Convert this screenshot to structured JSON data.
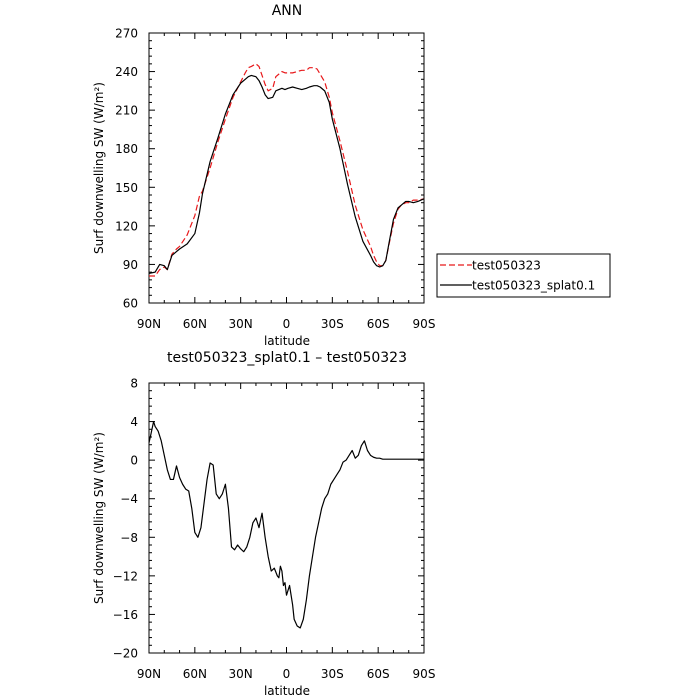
{
  "chart_data": [
    {
      "type": "line",
      "title": "ANN",
      "xlabel": "latitude",
      "ylabel": "Surf downwelling SW (W/m²)",
      "xlim": [
        -90,
        90
      ],
      "ylim": [
        60,
        270
      ],
      "xticks": [
        {
          "value": -90,
          "label": "90N"
        },
        {
          "value": -60,
          "label": "60N"
        },
        {
          "value": -30,
          "label": "30N"
        },
        {
          "value": 0,
          "label": "0"
        },
        {
          "value": 30,
          "label": "30S"
        },
        {
          "value": 60,
          "label": "60S"
        },
        {
          "value": 90,
          "label": "90S"
        }
      ],
      "yticks": [
        60,
        90,
        120,
        150,
        180,
        210,
        240,
        270
      ],
      "legend_position": "right",
      "series": [
        {
          "name": "test050323",
          "color": "#e8191b",
          "dash": "dashed",
          "x": [
            -90,
            -86,
            -83,
            -80,
            -78,
            -75,
            -72,
            -70,
            -65,
            -60,
            -57,
            -55,
            -50,
            -45,
            -40,
            -35,
            -30,
            -27,
            -25,
            -23,
            -20,
            -18,
            -16,
            -14,
            -12,
            -9,
            -7,
            -5,
            -3,
            -1,
            1,
            4,
            7,
            10,
            13,
            15,
            18,
            20,
            22,
            25,
            28,
            30,
            35,
            40,
            45,
            50,
            55,
            57,
            59,
            61,
            63,
            65,
            67,
            70,
            73,
            75,
            78,
            80,
            83,
            86,
            90
          ],
          "y": [
            81,
            81,
            86,
            88,
            86,
            98,
            102,
            104,
            113,
            128,
            143,
            147,
            165,
            185,
            203,
            220,
            232,
            239,
            243,
            244,
            246,
            244,
            237,
            230,
            225,
            227,
            236,
            238,
            240,
            239,
            239,
            239,
            240,
            241,
            241,
            243,
            243,
            242,
            238,
            232,
            220,
            208,
            186,
            162,
            136,
            117,
            104,
            97,
            92,
            89,
            89,
            93,
            105,
            122,
            133,
            136,
            138,
            138,
            140,
            140,
            141
          ]
        },
        {
          "name": "test050323_splat0.1",
          "color": "#000000",
          "dash": "solid",
          "x": [
            -90,
            -86,
            -83,
            -80,
            -78,
            -75,
            -72,
            -70,
            -65,
            -60,
            -57,
            -55,
            -50,
            -45,
            -40,
            -35,
            -30,
            -27,
            -25,
            -23,
            -20,
            -18,
            -16,
            -14,
            -12,
            -9,
            -7,
            -5,
            -3,
            -1,
            1,
            4,
            7,
            10,
            13,
            15,
            18,
            20,
            22,
            25,
            28,
            30,
            35,
            40,
            45,
            50,
            55,
            57,
            59,
            61,
            63,
            65,
            67,
            70,
            73,
            75,
            78,
            80,
            83,
            86,
            90
          ],
          "y": [
            83,
            84,
            90,
            89,
            86,
            97,
            100,
            102,
            106,
            114,
            130,
            145,
            170,
            188,
            207,
            222,
            231,
            234,
            236,
            237,
            236,
            233,
            228,
            222,
            219,
            220,
            225,
            226,
            227,
            226,
            227,
            228,
            227,
            226,
            227,
            228,
            229,
            229,
            228,
            225,
            216,
            203,
            180,
            152,
            127,
            108,
            97,
            92,
            89,
            88,
            89,
            93,
            106,
            125,
            134,
            136,
            139,
            139,
            138,
            139,
            141
          ]
        }
      ]
    },
    {
      "type": "line",
      "title": "test050323_splat0.1 – test050323",
      "xlabel": "latitude",
      "ylabel": "Surf downwelling SW (W/m²)",
      "xlim": [
        -90,
        90
      ],
      "ylim": [
        -20,
        8
      ],
      "xticks": [
        {
          "value": -90,
          "label": "90N"
        },
        {
          "value": -60,
          "label": "60N"
        },
        {
          "value": -30,
          "label": "30N"
        },
        {
          "value": 0,
          "label": "0"
        },
        {
          "value": 30,
          "label": "30S"
        },
        {
          "value": 60,
          "label": "60S"
        },
        {
          "value": 90,
          "label": "90S"
        }
      ],
      "yticks": [
        -20,
        -16,
        -12,
        -8,
        -4,
        0,
        4,
        8
      ],
      "series": [
        {
          "color": "#000000",
          "dash": "solid",
          "x": [
            -90,
            -89,
            -87,
            -86,
            -84,
            -82,
            -80,
            -78,
            -76,
            -74,
            -72,
            -70,
            -68,
            -66,
            -64,
            -62,
            -60,
            -58,
            -56,
            -54,
            -52,
            -50,
            -48,
            -46,
            -44,
            -42,
            -40,
            -38,
            -36,
            -34,
            -32,
            -30,
            -28,
            -26,
            -24,
            -22,
            -20,
            -18,
            -16,
            -14,
            -12,
            -10,
            -8,
            -6,
            -5,
            -4,
            -3,
            -2,
            -1,
            0,
            1,
            2,
            3,
            4,
            5,
            7,
            9,
            11,
            13,
            15,
            17,
            19,
            21,
            23,
            25,
            27,
            29,
            31,
            33,
            35,
            37,
            39,
            41,
            43,
            45,
            47,
            49,
            51,
            53,
            55,
            57,
            59,
            61,
            63,
            65,
            67,
            69,
            71,
            73,
            75,
            77,
            79,
            81,
            83,
            85,
            87,
            90
          ],
          "y": [
            1.8,
            2.5,
            4.0,
            3.5,
            3.0,
            2.0,
            0.5,
            -1.0,
            -2.0,
            -2.0,
            -0.6,
            -1.8,
            -2.5,
            -3.0,
            -3.2,
            -5.0,
            -7.5,
            -8.0,
            -7.0,
            -4.5,
            -2.0,
            -0.3,
            -0.5,
            -3.5,
            -4.0,
            -3.5,
            -2.5,
            -5.0,
            -9.0,
            -9.3,
            -8.8,
            -9.2,
            -9.5,
            -9.0,
            -8.0,
            -6.5,
            -6.0,
            -7.0,
            -5.5,
            -8.0,
            -10.0,
            -11.5,
            -11.2,
            -12.0,
            -12.2,
            -11.0,
            -11.5,
            -13.0,
            -12.7,
            -14.0,
            -13.5,
            -13.0,
            -14.0,
            -15.0,
            -16.5,
            -17.2,
            -17.4,
            -16.5,
            -14.5,
            -12.0,
            -10.0,
            -8.0,
            -6.5,
            -5.0,
            -4.0,
            -3.5,
            -2.5,
            -2.0,
            -1.5,
            -1.0,
            -0.2,
            0.0,
            0.5,
            1.0,
            0.2,
            0.5,
            1.5,
            2.0,
            1.0,
            0.5,
            0.3,
            0.2,
            0.2,
            0.1,
            0.1,
            0.1,
            0.1,
            0.1,
            0.1,
            0.1,
            0.1,
            0.1,
            0.1,
            0.1,
            0.1,
            0.1,
            0.1
          ]
        }
      ]
    }
  ]
}
